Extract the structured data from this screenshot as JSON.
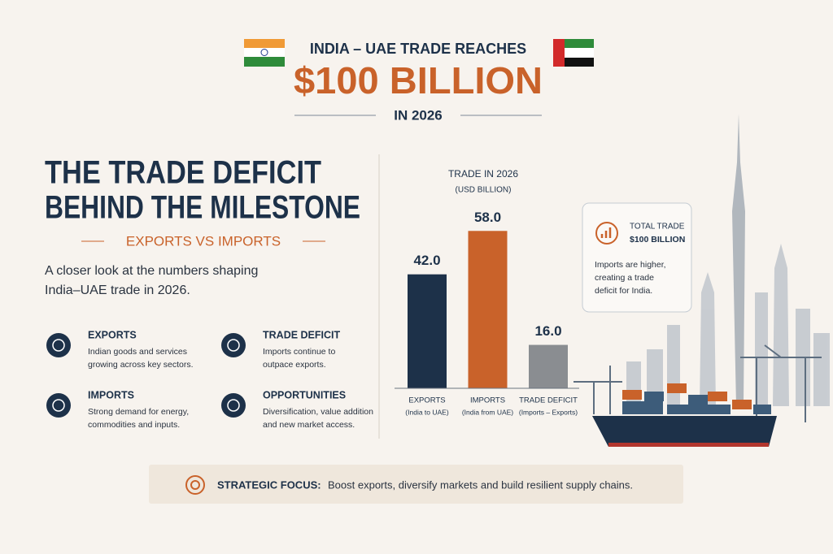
{
  "header": {
    "kicker": "INDIA – UAE TRADE REACHES",
    "headline": "$100 BILLION",
    "subline": "IN 2026"
  },
  "intro": {
    "title_lines": [
      "THE TRADE DEFICIT",
      "BEHIND THE MILESTONE"
    ],
    "tagline": "EXPORTS VS IMPORTS",
    "text_lines": [
      "A closer look at the numbers shaping",
      "India–UAE trade in 2026."
    ]
  },
  "items": [
    {
      "title": "EXPORTS",
      "lines": [
        "Indian goods and services",
        "growing across key sectors."
      ]
    },
    {
      "title": "TRADE DEFICIT",
      "lines": [
        "Imports continue to",
        "outpace exports."
      ]
    },
    {
      "title": "IMPORTS",
      "lines": [
        "Strong demand for energy,",
        "commodities and inputs."
      ]
    },
    {
      "title": "OPPORTUNITIES",
      "lines": [
        "Diversification, value addition",
        "and new market access."
      ]
    }
  ],
  "chart_data": {
    "type": "bar",
    "title": "TRADE IN 2026",
    "subtitle": "(USD BILLION)",
    "categories": [
      "EXPORTS",
      "IMPORTS",
      "TRADE DEFICIT"
    ],
    "category_notes": [
      "(India to UAE)",
      "(India from UAE)",
      "(Imports – Exports)"
    ],
    "values": [
      42,
      58,
      16
    ],
    "value_labels": [
      "42.0",
      "58.0",
      "16.0"
    ],
    "colors": [
      "#1d3149",
      "#c9622a",
      "#8a8d91"
    ]
  },
  "callout": {
    "label": "TOTAL TRADE",
    "value": "$100 BILLION",
    "lines": [
      "Imports are higher,",
      "creating a trade",
      "deficit for India."
    ]
  },
  "footer": {
    "label": "STRATEGIC FOCUS:",
    "text": "Boost exports, diversify markets and build resilient supply chains."
  }
}
